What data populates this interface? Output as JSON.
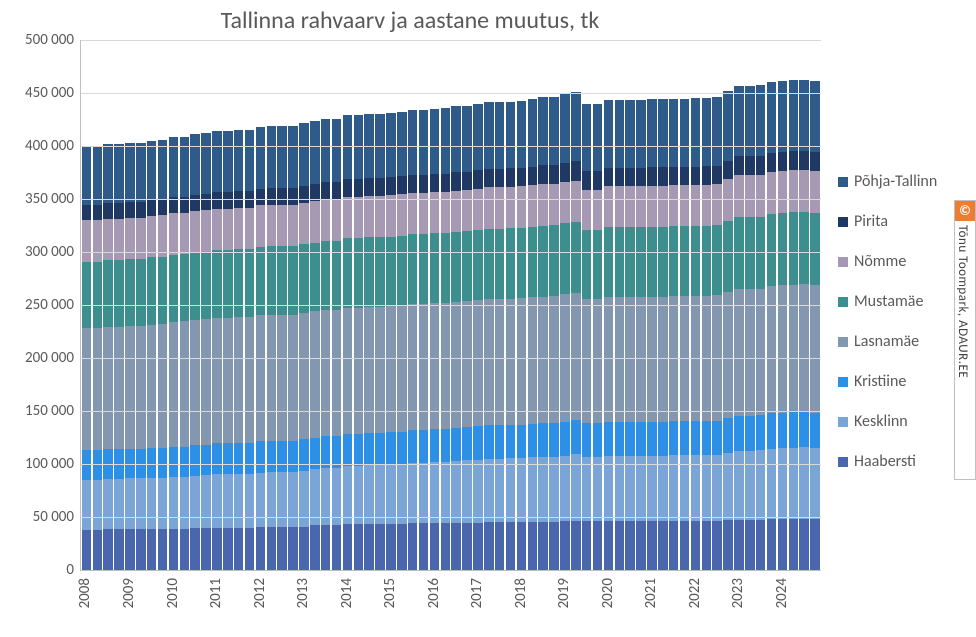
{
  "title": "Tallinna rahvaarv ja aastane muutus, tk",
  "title_fontsize": 24,
  "background_color": "#ffffff",
  "grid_color": "#d9d9d9",
  "text_color": "#595959",
  "chart": {
    "type": "stacked-bar",
    "ylim": [
      0,
      500000
    ],
    "ytick_step": 50000,
    "yticklabels": [
      "0",
      "50 000",
      "100 000",
      "150 000",
      "200 000",
      "250 000",
      "300 000",
      "350 000",
      "400 000",
      "450 000",
      "500 000"
    ],
    "label_fontsize": 15,
    "series": [
      {
        "name": "Haabersti",
        "color": "#4a66ac"
      },
      {
        "name": "Kesklinn",
        "color": "#7ba5d6"
      },
      {
        "name": "Kristiine",
        "color": "#2e8fe6"
      },
      {
        "name": "Lasnamäe",
        "color": "#8497b0"
      },
      {
        "name": "Mustamäe",
        "color": "#3d8f8f"
      },
      {
        "name": "Nõmme",
        "color": "#a699b3"
      },
      {
        "name": "Pirita",
        "color": "#1f3864"
      },
      {
        "name": "Põhja-Tallinn",
        "color": "#2e5b8a"
      }
    ],
    "x_year_labels": [
      "2008",
      "2009",
      "2010",
      "2011",
      "2012",
      "2013",
      "2014",
      "2015",
      "2016",
      "2017",
      "2018",
      "2019",
      "2020",
      "2021",
      "2022",
      "2023",
      "2024"
    ],
    "bars_per_year": 4,
    "values": [
      [
        38000,
        47000,
        28000,
        115000,
        63000,
        39000,
        14000,
        55000
      ],
      [
        38000,
        47000,
        28000,
        115000,
        63000,
        39000,
        14000,
        55000
      ],
      [
        38500,
        47500,
        28000,
        115500,
        63000,
        39000,
        14500,
        55500
      ],
      [
        38500,
        47500,
        28000,
        115500,
        63000,
        39000,
        14500,
        55500
      ],
      [
        38500,
        48000,
        28000,
        116000,
        63000,
        39000,
        14500,
        56000
      ],
      [
        38500,
        48000,
        28000,
        116000,
        63000,
        39000,
        14500,
        56000
      ],
      [
        39000,
        48000,
        28000,
        116500,
        63500,
        39000,
        15000,
        56000
      ],
      [
        39000,
        48000,
        28000,
        117000,
        63500,
        39000,
        15000,
        56500
      ],
      [
        39000,
        49000,
        28500,
        117500,
        63500,
        39000,
        15000,
        57000
      ],
      [
        39000,
        49000,
        28500,
        118000,
        63500,
        39000,
        15000,
        57000
      ],
      [
        39500,
        49500,
        28500,
        118000,
        64000,
        39000,
        15000,
        57500
      ],
      [
        39500,
        50000,
        28500,
        118500,
        64000,
        39000,
        15000,
        57500
      ],
      [
        40000,
        50500,
        29000,
        118500,
        64000,
        39000,
        15500,
        58000
      ],
      [
        40000,
        50500,
        29000,
        118500,
        64000,
        39000,
        15500,
        58000
      ],
      [
        40000,
        51000,
        29000,
        119000,
        64000,
        39000,
        15500,
        58000
      ],
      [
        40000,
        51000,
        29000,
        119000,
        64000,
        39000,
        15500,
        58000
      ],
      [
        40500,
        51500,
        29500,
        119000,
        64500,
        39000,
        15500,
        58500
      ],
      [
        40500,
        52000,
        29500,
        119000,
        64500,
        39000,
        15500,
        58500
      ],
      [
        40500,
        52000,
        29500,
        119000,
        64500,
        39000,
        16000,
        58500
      ],
      [
        40500,
        52000,
        29500,
        119000,
        64500,
        39000,
        16000,
        58500
      ],
      [
        41000,
        52500,
        30000,
        119000,
        65000,
        39000,
        16000,
        59000
      ],
      [
        42000,
        53000,
        30000,
        119000,
        65000,
        39000,
        16000,
        59500
      ],
      [
        42500,
        54000,
        30000,
        119000,
        65000,
        39000,
        16500,
        60000
      ],
      [
        42500,
        54000,
        30000,
        119000,
        65000,
        39000,
        16500,
        60000
      ],
      [
        43000,
        55000,
        30500,
        119000,
        65500,
        39000,
        16500,
        60500
      ],
      [
        43000,
        55000,
        30500,
        119000,
        65500,
        39000,
        16500,
        60500
      ],
      [
        43500,
        55500,
        30500,
        119000,
        65500,
        39000,
        16500,
        60500
      ],
      [
        43500,
        55500,
        30500,
        119000,
        65500,
        39000,
        16500,
        60500
      ],
      [
        43500,
        56000,
        30500,
        119000,
        65500,
        39000,
        17000,
        61000
      ],
      [
        43500,
        56500,
        30500,
        119000,
        66000,
        39000,
        17000,
        61000
      ],
      [
        44000,
        57000,
        31000,
        119000,
        66000,
        39000,
        17000,
        61000
      ],
      [
        44000,
        57000,
        31000,
        119000,
        66000,
        39000,
        17000,
        61000
      ],
      [
        44000,
        58000,
        31000,
        119000,
        66000,
        39000,
        17000,
        61000
      ],
      [
        44000,
        58000,
        31000,
        119000,
        66000,
        39000,
        17000,
        61500
      ],
      [
        44500,
        58500,
        31000,
        119000,
        66000,
        39000,
        17500,
        62000
      ],
      [
        44500,
        59000,
        31000,
        119000,
        66000,
        39000,
        17500,
        62000
      ],
      [
        44500,
        59500,
        31500,
        119000,
        66000,
        39000,
        17500,
        62500
      ],
      [
        45000,
        60000,
        31500,
        119000,
        66500,
        39000,
        17500,
        63000
      ],
      [
        45000,
        60000,
        31500,
        119000,
        66500,
        39000,
        17500,
        63000
      ],
      [
        45000,
        60500,
        31500,
        119000,
        66500,
        39000,
        17500,
        63000
      ],
      [
        45000,
        60500,
        31500,
        119500,
        66500,
        39000,
        17500,
        63500
      ],
      [
        45500,
        61000,
        31500,
        119500,
        66500,
        39000,
        17500,
        63500
      ],
      [
        45500,
        61000,
        32000,
        119500,
        67000,
        39000,
        18000,
        64000
      ],
      [
        45500,
        61500,
        32000,
        119500,
        67000,
        39000,
        18000,
        64000
      ],
      [
        46000,
        62000,
        32000,
        120000,
        67000,
        39000,
        18000,
        65000
      ],
      [
        46500,
        62500,
        32500,
        120000,
        67000,
        39000,
        18000,
        65500
      ],
      [
        46000,
        60500,
        32000,
        117000,
        65500,
        38000,
        17500,
        63500
      ],
      [
        46000,
        60500,
        32000,
        117000,
        65500,
        38000,
        17500,
        63500
      ],
      [
        46000,
        61500,
        32000,
        118000,
        66000,
        38500,
        17500,
        64000
      ],
      [
        46000,
        61500,
        32000,
        118000,
        66000,
        38500,
        17500,
        64000
      ],
      [
        46000,
        61500,
        32000,
        118000,
        66000,
        38500,
        17500,
        64000
      ],
      [
        46000,
        61500,
        32000,
        118000,
        66000,
        38500,
        17500,
        64000
      ],
      [
        46500,
        61500,
        32000,
        118000,
        66000,
        38500,
        17500,
        64000
      ],
      [
        46500,
        61500,
        32000,
        118000,
        66000,
        38500,
        17500,
        64000
      ],
      [
        46500,
        62000,
        32000,
        118000,
        66000,
        38500,
        17500,
        64000
      ],
      [
        46500,
        62000,
        32000,
        118000,
        66000,
        38500,
        17500,
        64000
      ],
      [
        46500,
        62000,
        32000,
        118000,
        66000,
        38500,
        17500,
        64500
      ],
      [
        46500,
        62000,
        32000,
        118000,
        66500,
        38500,
        17500,
        64500
      ],
      [
        46500,
        62000,
        32500,
        118000,
        66500,
        38500,
        17500,
        64500
      ],
      [
        47000,
        63500,
        32500,
        119000,
        67500,
        39000,
        17500,
        66000
      ],
      [
        47500,
        65000,
        33000,
        119500,
        68000,
        39500,
        18000,
        66500
      ],
      [
        47500,
        65000,
        33000,
        119500,
        68000,
        39500,
        18000,
        66500
      ],
      [
        47500,
        65500,
        33000,
        119500,
        68000,
        39500,
        18000,
        66500
      ],
      [
        48000,
        66500,
        33500,
        120000,
        68000,
        39500,
        18000,
        66500
      ],
      [
        48000,
        67000,
        33500,
        120000,
        68500,
        39500,
        18000,
        67000
      ],
      [
        48000,
        67500,
        33500,
        120000,
        68500,
        39500,
        18000,
        67000
      ],
      [
        48500,
        67500,
        33500,
        120000,
        68500,
        39500,
        18000,
        67000
      ],
      [
        48000,
        67000,
        33500,
        120000,
        68500,
        39500,
        18000,
        66500
      ]
    ]
  },
  "legend": {
    "fontsize": 16,
    "items": [
      "Põhja-Tallinn",
      "Pirita",
      "Nõmme",
      "Mustamäe",
      "Lasnamäe",
      "Kristiine",
      "Kesklinn",
      "Haabersti"
    ]
  },
  "watermark": {
    "copyright_symbol": "©",
    "badge_color": "#ed7d31",
    "text": "Tõnu Toompark, ADAUR.EE"
  }
}
